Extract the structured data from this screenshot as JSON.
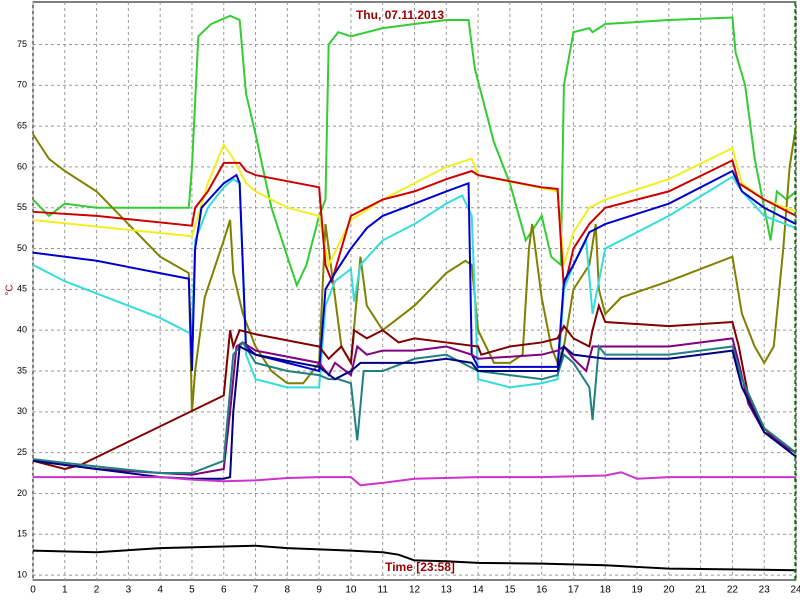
{
  "chart_data": {
    "type": "line",
    "title": "Thu, 07.11.2013",
    "x_label": "Time [23:58]",
    "y_label": "°C",
    "xlim": [
      0,
      24
    ],
    "ylim": [
      9.4,
      80.2
    ],
    "grid": true,
    "time_marker": 23.97,
    "xticks": [
      0,
      1,
      2,
      3,
      4,
      5,
      6,
      7,
      8,
      9,
      10,
      11,
      12,
      13,
      14,
      15,
      16,
      17,
      18,
      19,
      20,
      21,
      22,
      23,
      24
    ],
    "yticks": [
      10,
      15,
      20,
      25,
      30,
      35,
      40,
      45,
      50,
      55,
      60,
      65,
      70,
      75
    ],
    "series": [
      {
        "color": "#33cc33",
        "x": [
          0,
          0.5,
          1,
          2,
          4.9,
          5,
          5.2,
          5.6,
          6.2,
          6.5,
          6.7,
          7,
          7.5,
          8,
          8.3,
          8.6,
          9,
          9.2,
          9.3,
          9.6,
          10,
          11,
          12,
          13,
          13.7,
          13.9,
          14.5,
          15,
          15.5,
          16,
          16.3,
          16.6,
          16.7,
          17,
          17.5,
          17.6,
          18,
          20,
          22,
          22.1,
          22.4,
          22.7,
          23,
          23.2,
          23.4,
          23.7,
          24
        ],
        "values": [
          56,
          54,
          55.5,
          55,
          55,
          60,
          76,
          77.5,
          78.5,
          78,
          69,
          64,
          55,
          49,
          45.5,
          48,
          54,
          56,
          75,
          76.5,
          76,
          77,
          77.5,
          78,
          78,
          72,
          63,
          58,
          51,
          54,
          49,
          48,
          70,
          76.5,
          77,
          76.5,
          77.5,
          78,
          78.3,
          74,
          70,
          61,
          55,
          51,
          57,
          56,
          57
        ]
      },
      {
        "color": "#808000",
        "x": [
          0,
          0.5,
          1,
          2,
          3,
          4,
          4.9,
          5,
          5.1,
          5.4,
          6,
          6.2,
          6.3,
          6.6,
          7,
          7.5,
          8,
          8.5,
          9,
          9.2,
          9.4,
          9.7,
          10,
          10.3,
          10.5,
          11,
          12,
          13,
          13.6,
          13.8,
          14,
          14.5,
          15,
          15.4,
          15.6,
          15.7,
          16,
          16.3,
          16.5,
          16.7,
          17,
          17.5,
          17.7,
          17.8,
          18,
          18.5,
          20,
          22,
          22.3,
          22.7,
          23,
          23.3,
          23.6,
          23.8,
          24
        ],
        "values": [
          64,
          61,
          59.5,
          57,
          53,
          49,
          47,
          30,
          35,
          44,
          51,
          53.5,
          47,
          42,
          38,
          35,
          33.5,
          33.5,
          36,
          53,
          47,
          38,
          36,
          49,
          43,
          40,
          43,
          47,
          48.5,
          48,
          40,
          36,
          36,
          37,
          50,
          53,
          44,
          38,
          36,
          38,
          45,
          48,
          53,
          45,
          42,
          44,
          46,
          49,
          42,
          38,
          36,
          38,
          50,
          60,
          65
        ]
      },
      {
        "color": "#f0f020",
        "x": [
          0,
          5,
          5.5,
          6,
          6.3,
          6.7,
          7,
          8,
          9,
          9.3,
          10,
          11,
          12,
          13,
          13.8,
          14,
          16.5,
          16.7,
          17,
          17.5,
          18,
          20,
          22,
          22.3,
          23,
          24
        ],
        "values": [
          53.5,
          51.5,
          58,
          62.7,
          61,
          58,
          57,
          55,
          54,
          48,
          53.5,
          56,
          58,
          60,
          61,
          59,
          57,
          48,
          52,
          55,
          56,
          58.5,
          62.3,
          58,
          56,
          54.5
        ]
      },
      {
        "color": "#cc0000",
        "x": [
          0,
          2,
          5,
          5.1,
          5.5,
          6,
          6.5,
          6.7,
          7,
          9,
          9.2,
          9.4,
          10,
          10.5,
          11,
          12,
          13,
          13.8,
          14,
          16,
          16.5,
          16.7,
          17,
          17.5,
          18,
          20,
          22,
          22.2,
          23,
          24
        ],
        "values": [
          54.5,
          54,
          52.8,
          55,
          57,
          60.5,
          60.5,
          59.5,
          59,
          57.5,
          48,
          46,
          54,
          55,
          56,
          57,
          58.5,
          59.5,
          59,
          57.5,
          57.3,
          45,
          50,
          53,
          55,
          57,
          60.8,
          58,
          56,
          54
        ]
      },
      {
        "color": "#33dddd",
        "x": [
          0,
          1,
          2,
          3,
          4,
          5,
          5.1,
          5.5,
          6,
          6.3,
          6.5,
          6.7,
          7,
          8,
          9,
          9.2,
          9.5,
          10,
          10.1,
          10.3,
          11,
          12,
          13,
          13.5,
          13.8,
          14,
          15,
          16,
          16.5,
          16.7,
          17,
          17.4,
          17.6,
          18,
          20,
          22,
          22.3,
          23,
          24
        ],
        "values": [
          48,
          46,
          44.5,
          43,
          41.5,
          39.5,
          51,
          55,
          57.5,
          58.5,
          58,
          37,
          34,
          33,
          33,
          43,
          46,
          47.5,
          43.5,
          48,
          51,
          53,
          55.5,
          56.5,
          54,
          34,
          33,
          33.5,
          34,
          45,
          48,
          51,
          42,
          50,
          54,
          58.8,
          57,
          54,
          52.5
        ]
      },
      {
        "color": "#0000cc",
        "x": [
          0,
          2,
          4.9,
          5,
          5.1,
          5.3,
          6,
          6.4,
          6.5,
          6.7,
          7,
          9,
          9.2,
          9.5,
          10,
          10.5,
          11,
          12,
          13,
          13.7,
          13.8,
          14,
          16.5,
          16.7,
          17,
          17.5,
          18,
          20,
          22,
          22.3,
          23,
          24
        ],
        "values": [
          49.5,
          48.5,
          46.3,
          35,
          50,
          55,
          58,
          59,
          58,
          38,
          37,
          35,
          45,
          47,
          50,
          52.5,
          54,
          55.5,
          57,
          58,
          37,
          35.5,
          35.5,
          46,
          48,
          52,
          53,
          55.5,
          59.5,
          57,
          55,
          53
        ]
      },
      {
        "color": "#800000",
        "x": [
          0,
          1,
          1.5,
          6,
          6.2,
          6.3,
          6.5,
          7,
          9,
          9.3,
          9.7,
          10,
          10.1,
          10.5,
          11,
          11.5,
          12,
          13,
          14,
          14.1,
          15,
          16,
          16.5,
          16.7,
          17,
          17.5,
          17.6,
          17.8,
          18,
          20,
          22,
          22.2,
          22.5,
          23,
          23.5,
          24
        ],
        "values": [
          24,
          23,
          23.5,
          32,
          40,
          38,
          40,
          39.5,
          38,
          36.5,
          38,
          36,
          40,
          39,
          40,
          38.5,
          39,
          38.5,
          38,
          37,
          38,
          38.5,
          39,
          40.5,
          39,
          38,
          40,
          43,
          41,
          40.5,
          41,
          38,
          32,
          28,
          26,
          25
        ]
      },
      {
        "color": "#800080",
        "x": [
          0,
          2,
          4,
          5,
          6,
          6.2,
          6.4,
          6.6,
          7,
          9,
          9.3,
          9.5,
          10,
          10.2,
          10.5,
          11,
          12,
          13,
          13.8,
          14,
          16,
          16.5,
          16.7,
          17,
          17.4,
          17.6,
          18,
          20,
          22,
          22.2,
          22.5,
          23,
          24
        ],
        "values": [
          24,
          23,
          22.5,
          22.3,
          23,
          30,
          38,
          38.5,
          37.5,
          36,
          34.5,
          36,
          34.5,
          38,
          37,
          37.5,
          37.5,
          38,
          37,
          36.5,
          37,
          37.5,
          38,
          36.5,
          35,
          38,
          38,
          38,
          39,
          36,
          31,
          27.5,
          25
        ]
      },
      {
        "color": "#208080",
        "x": [
          0,
          2,
          4,
          5,
          6,
          6.3,
          6.6,
          7,
          8,
          9,
          9.3,
          9.6,
          10,
          10.2,
          10.4,
          11,
          12,
          13,
          13.5,
          14,
          15,
          16,
          16.5,
          16.7,
          17,
          17.5,
          17.6,
          17.8,
          18,
          20,
          22,
          22.3,
          23,
          24
        ],
        "values": [
          24.2,
          23.3,
          22.5,
          22.5,
          24,
          37,
          38.5,
          36,
          35,
          34.5,
          34,
          34,
          33.5,
          26.5,
          35,
          35,
          36.5,
          37,
          36,
          35,
          34.5,
          34,
          34.5,
          37,
          36,
          33,
          29,
          38,
          37,
          37,
          38,
          34,
          28,
          25
        ]
      },
      {
        "color": "#000080",
        "x": [
          0,
          2,
          4,
          5,
          6,
          6.2,
          6.3,
          6.5,
          7,
          9,
          9.5,
          10,
          10.3,
          11,
          12,
          13,
          13.8,
          14,
          16.5,
          16.7,
          17,
          18,
          20,
          22,
          22.3,
          23,
          24
        ],
        "values": [
          24,
          23,
          22,
          21.8,
          21.8,
          22,
          30,
          38,
          37,
          35.5,
          34,
          35,
          36,
          36,
          36,
          36.5,
          36,
          35,
          35,
          38,
          37,
          36.5,
          36.5,
          37.5,
          33,
          27.5,
          24.5
        ]
      },
      {
        "color": "#cc33cc",
        "x": [
          0,
          4,
          5,
          6,
          7,
          8,
          9,
          10,
          10.3,
          11,
          12,
          14,
          16,
          18,
          18.5,
          19,
          20,
          24
        ],
        "values": [
          22,
          22,
          21.7,
          21.5,
          21.6,
          21.9,
          22,
          22,
          21,
          21.3,
          21.8,
          22,
          22,
          22.2,
          22.6,
          21.8,
          22,
          22
        ]
      },
      {
        "color": "#000000",
        "x": [
          0,
          2,
          4,
          6,
          7,
          8,
          10,
          11,
          11.5,
          12,
          13,
          14,
          16,
          18,
          19,
          20,
          22,
          24
        ],
        "values": [
          13,
          12.8,
          13.3,
          13.5,
          13.6,
          13.3,
          13,
          12.8,
          12.5,
          11.8,
          11.7,
          11.5,
          11.4,
          11.2,
          11,
          10.8,
          10.7,
          10.6
        ]
      }
    ]
  }
}
